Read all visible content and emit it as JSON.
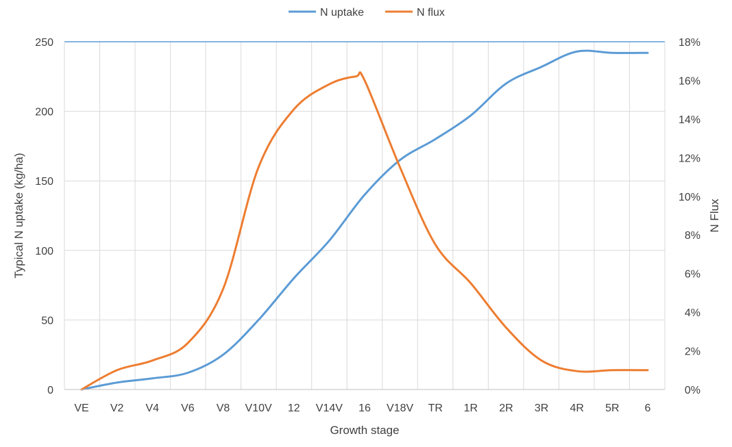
{
  "chart_data": {
    "type": "line",
    "categories": [
      "VE",
      "V2",
      "V4",
      "V6",
      "V8",
      "V10V",
      "12",
      "V14V",
      "16",
      "V18V",
      "TR",
      "1R",
      "2R",
      "3R",
      "4R",
      "5R",
      "6"
    ],
    "x_positions": [
      0,
      1,
      2,
      3,
      4,
      5,
      6,
      7,
      8,
      9,
      10,
      11,
      12,
      13,
      14,
      15,
      16
    ],
    "xlabel": "Growth stage",
    "ylabel": "Typical N uptake (kg/ha)",
    "y2label": "N Flux",
    "ylim": [
      0,
      250
    ],
    "y2lim": [
      0,
      18
    ],
    "yticks": [
      "0",
      "50",
      "100",
      "150",
      "200",
      "250"
    ],
    "y2ticks": [
      "0%",
      "2%",
      "4%",
      "6%",
      "8%",
      "10%",
      "12%",
      "14%",
      "16%",
      "18%"
    ],
    "grid": true,
    "legend_position": "top-center",
    "series": [
      {
        "name": "N uptake",
        "axis": "left",
        "color": "#5B9BD5",
        "x": [
          0,
          1,
          2,
          3,
          4,
          5,
          6,
          7,
          8,
          9,
          10,
          11,
          12,
          13,
          14,
          15,
          16
        ],
        "values": [
          0,
          5,
          8,
          12,
          25,
          50,
          80,
          107,
          140,
          165,
          180,
          197,
          220,
          232,
          243,
          242,
          242
        ]
      },
      {
        "name": "N flux",
        "axis": "right",
        "color": "#ED7D31",
        "x": [
          0,
          1,
          2,
          3,
          4,
          5,
          6,
          7,
          7.75,
          8,
          9,
          10,
          11,
          12,
          13,
          14,
          15,
          16
        ],
        "values": [
          0,
          1.0,
          1.5,
          2.4,
          5.2,
          11.5,
          14.5,
          15.8,
          16.2,
          16.0,
          11.5,
          7.5,
          5.5,
          3.2,
          1.5,
          0.95,
          1.0,
          1.0
        ]
      }
    ]
  }
}
